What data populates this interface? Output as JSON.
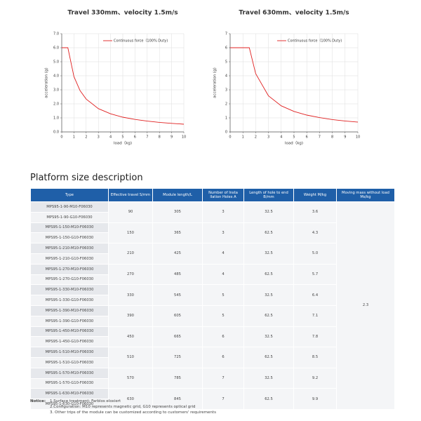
{
  "chart_data": [
    {
      "type": "line",
      "title": "Travel 330mm、velocity 1.5m/s",
      "x_label": "load（kg)",
      "y_label": "acceleration (g)",
      "x": [
        0,
        0.5,
        1,
        1.5,
        2,
        3,
        4,
        5,
        6,
        7,
        8,
        9,
        10
      ],
      "series": [
        {
          "name": "Continuous force（100% Duty)",
          "color": "#e02020",
          "values": [
            6.0,
            6.0,
            3.94,
            2.94,
            2.34,
            1.66,
            1.29,
            1.05,
            0.89,
            0.77,
            0.68,
            0.61,
            0.55
          ]
        }
      ],
      "xlim": [
        0,
        10
      ],
      "xticks": [
        0,
        1,
        2,
        3,
        4,
        5,
        6,
        7,
        8,
        9,
        10
      ],
      "ylim": [
        0,
        7
      ],
      "yticks": [
        {
          "value": 0,
          "label": "0.0"
        },
        {
          "value": 1,
          "label": "1.0"
        },
        {
          "value": 2,
          "label": "2.0"
        },
        {
          "value": 3,
          "label": "3.0"
        },
        {
          "value": 4,
          "label": "4.0"
        },
        {
          "value": 5,
          "label": "5.0"
        },
        {
          "value": 6,
          "label": "6.0"
        },
        {
          "value": 7,
          "label": "7.0"
        }
      ],
      "grid": true,
      "legend": "top-right"
    },
    {
      "type": "line",
      "title": "Travel 630mm、velocity 1.5m/s",
      "x_label": "load（kg)",
      "y_label": "acceleration (g)",
      "x": [
        0,
        1.5,
        2,
        3,
        4,
        5,
        6,
        7,
        8,
        9,
        10
      ],
      "series": [
        {
          "name": "Continuous force（100% Duty)",
          "color": "#e02020",
          "values": [
            6.0,
            6.0,
            4.15,
            2.57,
            1.86,
            1.46,
            1.2,
            1.02,
            0.88,
            0.78,
            0.7
          ]
        }
      ],
      "xlim": [
        0,
        10
      ],
      "xticks": [
        0,
        1,
        2,
        3,
        4,
        5,
        6,
        7,
        8,
        9,
        10
      ],
      "ylim": [
        0,
        7
      ],
      "yticks": [
        0,
        1,
        2,
        3,
        4,
        5,
        6,
        7
      ],
      "grid": true,
      "legend": "top-right"
    }
  ],
  "section_title": "Platform size description",
  "table": {
    "headers": [
      "Type",
      "Effective travel S/mm",
      "Module length/L",
      "Number of Insta llation Holes A",
      "Length of hole to end B/mm",
      "Weight M/kg",
      "Moving mass without load Ms/kg"
    ],
    "moving_mass": "2.3",
    "groups": [
      {
        "types": [
          "MPS95-1-90-M10-F06030",
          "MPS95-1-90-G10-F06030"
        ],
        "cells": [
          "90",
          "305",
          "3",
          "32.5",
          "3.6"
        ]
      },
      {
        "types": [
          "MPS95-1-150-M10-F06030",
          "MPS95-1-150-G10-F06030"
        ],
        "cells": [
          "150",
          "365",
          "3",
          "62.5",
          "4.3"
        ]
      },
      {
        "types": [
          "MPS95-1-210-M10-F06030",
          "MPS95-1-210-G10-F06030"
        ],
        "cells": [
          "210",
          "425",
          "4",
          "32.5",
          "5.0"
        ]
      },
      {
        "types": [
          "MPS95-1-270-M10-F06030",
          "MPS95-1-270-G10-F06030"
        ],
        "cells": [
          "270",
          "485",
          "4",
          "62.5",
          "5.7"
        ]
      },
      {
        "types": [
          "MPS95-1-330-M10-F06030",
          "MPS95-1-330-G10-F06030"
        ],
        "cells": [
          "330",
          "545",
          "5",
          "32.5",
          "6.4"
        ]
      },
      {
        "types": [
          "MPS95-1-390-M10-F06030",
          "MPS95-1-390-G10-F06030"
        ],
        "cells": [
          "390",
          "605",
          "5",
          "62.5",
          "7.1"
        ]
      },
      {
        "types": [
          "MPS95-1-450-M10-F06030",
          "MPS95-1-450-G10-F06030"
        ],
        "cells": [
          "450",
          "665",
          "6",
          "32.5",
          "7.8"
        ]
      },
      {
        "types": [
          "MPS95-1-510-M10-F06030",
          "MPS95-1-510-G10-F06030"
        ],
        "cells": [
          "510",
          "725",
          "6",
          "62.5",
          "8.5"
        ]
      },
      {
        "types": [
          "MPS95-1-570-M10-F06030",
          "MPS95-1-570-G10-F06030"
        ],
        "cells": [
          "570",
          "785",
          "7",
          "32.5",
          "9.2"
        ]
      },
      {
        "types": [
          "MPS95-1-630-M10-F06030",
          "MPS95-1-630-G10-F06030"
        ],
        "cells": [
          "630",
          "845",
          "7",
          "62.5",
          "9.9"
        ]
      }
    ]
  },
  "notice": {
    "label": "Notice:",
    "items": [
      "1.Surface treatment: Farblos eloxiert",
      "2.Configuration: M10 represents magnetic grid, G10 represents optical grid",
      "3. Other trips of the module can be customized according to customers' requirements"
    ]
  }
}
